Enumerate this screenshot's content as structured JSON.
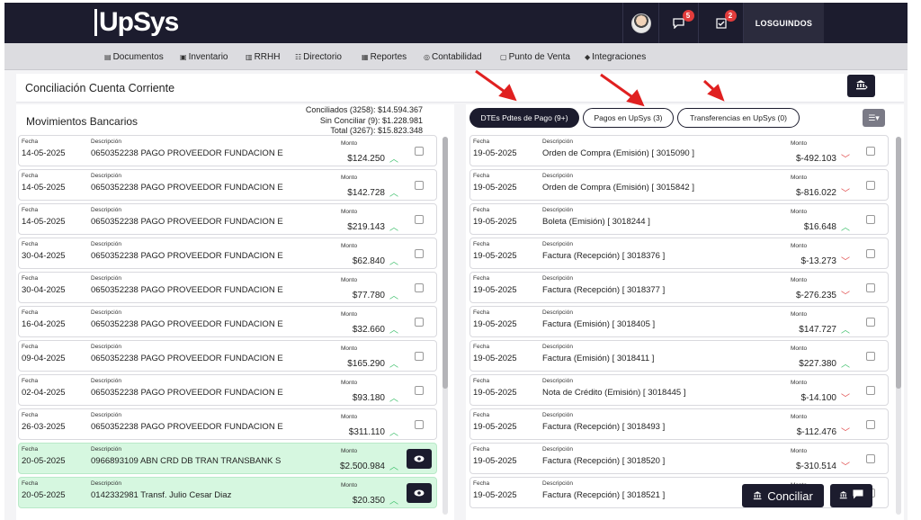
{
  "topbar": {
    "logo": "UpSys",
    "messages_count": "5",
    "tasks_count": "2",
    "user": "LOSGUINDOS"
  },
  "nav": [
    {
      "label": "Documentos",
      "icon": "document-icon"
    },
    {
      "label": "Inventario",
      "icon": "box-icon"
    },
    {
      "label": "RRHH",
      "icon": "id-card-icon"
    },
    {
      "label": "Directorio",
      "icon": "people-icon"
    },
    {
      "label": "Reportes",
      "icon": "report-icon"
    },
    {
      "label": "Contabilidad",
      "icon": "accounting-icon"
    },
    {
      "label": "Punto de Venta",
      "icon": "pos-icon"
    },
    {
      "label": "Integraciones",
      "icon": "integrations-icon"
    }
  ],
  "header": {
    "title": "Conciliación Cuenta Corriente"
  },
  "left": {
    "title": "Movimientos Bancarios",
    "totals": [
      "Conciliados (3258): $14.594.367",
      "Sin Conciliar (9): $1.228.981",
      "Total (3267): $15.823.348"
    ],
    "labels": {
      "fecha": "Fecha",
      "descripcion": "Descripción",
      "monto": "Monto"
    },
    "rows": [
      {
        "fecha": "14-05-2025",
        "desc": "0650352238 PAGO PROVEEDOR FUNDACION E",
        "monto": "$124.250",
        "dir": "up",
        "state": "unchecked"
      },
      {
        "fecha": "14-05-2025",
        "desc": "0650352238 PAGO PROVEEDOR FUNDACION E",
        "monto": "$142.728",
        "dir": "up",
        "state": "unchecked"
      },
      {
        "fecha": "14-05-2025",
        "desc": "0650352238 PAGO PROVEEDOR FUNDACION E",
        "monto": "$219.143",
        "dir": "up",
        "state": "unchecked"
      },
      {
        "fecha": "30-04-2025",
        "desc": "0650352238 PAGO PROVEEDOR FUNDACION E",
        "monto": "$62.840",
        "dir": "up",
        "state": "unchecked"
      },
      {
        "fecha": "30-04-2025",
        "desc": "0650352238 PAGO PROVEEDOR FUNDACION E",
        "monto": "$77.780",
        "dir": "up",
        "state": "unchecked"
      },
      {
        "fecha": "16-04-2025",
        "desc": "0650352238 PAGO PROVEEDOR FUNDACION E",
        "monto": "$32.660",
        "dir": "up",
        "state": "unchecked"
      },
      {
        "fecha": "09-04-2025",
        "desc": "0650352238 PAGO PROVEEDOR FUNDACION E",
        "monto": "$165.290",
        "dir": "up",
        "state": "unchecked"
      },
      {
        "fecha": "02-04-2025",
        "desc": "0650352238 PAGO PROVEEDOR FUNDACION E",
        "monto": "$93.180",
        "dir": "up",
        "state": "unchecked"
      },
      {
        "fecha": "26-03-2025",
        "desc": "0650352238 PAGO PROVEEDOR FUNDACION E",
        "monto": "$311.110",
        "dir": "up",
        "state": "unchecked"
      },
      {
        "fecha": "20-05-2025",
        "desc": "0966893109 ABN CRD DB TRAN TRANSBANK S",
        "monto": "$2.500.984",
        "dir": "up",
        "state": "reconciled"
      },
      {
        "fecha": "20-05-2025",
        "desc": "0142332981 Transf. Julio Cesar Diaz",
        "monto": "$20.350",
        "dir": "up",
        "state": "reconciled"
      }
    ]
  },
  "right": {
    "tabs": [
      "DTEs Pdtes de Pago (9+)",
      "Pagos en UpSys (3)",
      "Transferencias en UpSys (0)"
    ],
    "labels": {
      "fecha": "Fecha",
      "descripcion": "Descripción",
      "monto": "Monto"
    },
    "rows": [
      {
        "fecha": "19-05-2025",
        "desc": "Orden de Compra (Emisión)  [   3015090   ]",
        "monto": "$-492.103",
        "dir": "down"
      },
      {
        "fecha": "19-05-2025",
        "desc": "Orden de Compra (Emisión)  [   3015842   ]",
        "monto": "$-816.022",
        "dir": "down"
      },
      {
        "fecha": "19-05-2025",
        "desc": "Boleta (Emisión)  [   3018244   ]",
        "monto": "$16.648",
        "dir": "up"
      },
      {
        "fecha": "19-05-2025",
        "desc": "Factura (Recepción)  [   3018376   ]",
        "monto": "$-13.273",
        "dir": "down"
      },
      {
        "fecha": "19-05-2025",
        "desc": "Factura (Recepción)  [   3018377   ]",
        "monto": "$-276.235",
        "dir": "down"
      },
      {
        "fecha": "19-05-2025",
        "desc": "Factura (Emisión)  [   3018405   ]",
        "monto": "$147.727",
        "dir": "up"
      },
      {
        "fecha": "19-05-2025",
        "desc": "Factura (Emisión)  [   3018411   ]",
        "monto": "$227.380",
        "dir": "up"
      },
      {
        "fecha": "19-05-2025",
        "desc": "Nota de Crédito (Emisión)  [   3018445   ]",
        "monto": "$-14.100",
        "dir": "down"
      },
      {
        "fecha": "19-05-2025",
        "desc": "Factura (Recepción)  [   3018493   ]",
        "monto": "$-112.476",
        "dir": "down"
      },
      {
        "fecha": "19-05-2025",
        "desc": "Factura (Recepción)  [   3018520   ]",
        "monto": "$-310.514",
        "dir": "down"
      },
      {
        "fecha": "19-05-2025",
        "desc": "Factura (Recepción)  [   3018521   ]",
        "monto": "",
        "dir": "down"
      }
    ]
  },
  "footer": {
    "conciliar_label": "Conciliar"
  },
  "colors": {
    "brand_dark": "#1c1c2e",
    "up": "#3cbf6a",
    "down": "#e04848",
    "reconciled_bg": "#d6f7e0",
    "annotation_arrow": "#e02020"
  }
}
